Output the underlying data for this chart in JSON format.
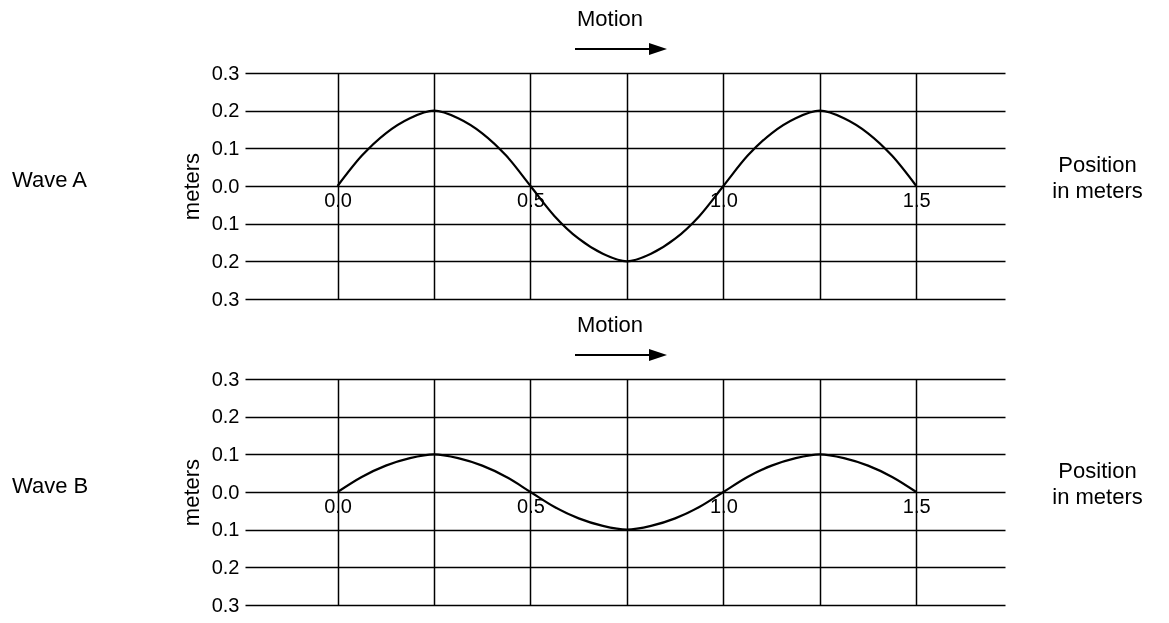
{
  "chart_data": [
    {
      "type": "line",
      "title": "Wave A",
      "annotations": [
        "Motion"
      ],
      "xlabel": "Position in meters",
      "ylabel": "meters",
      "x": [
        0,
        0.0625,
        0.125,
        0.1875,
        0.25,
        0.3125,
        0.375,
        0.4375,
        0.5,
        0.5625,
        0.625,
        0.6875,
        0.75,
        0.8125,
        0.875,
        0.9375,
        1,
        1.0625,
        1.125,
        1.1875,
        1.25,
        1.3125,
        1.375,
        1.4375,
        1.5
      ],
      "series": [
        {
          "color": "#000000",
          "values": [
            0,
            0.08,
            0.14,
            0.18,
            0.2,
            0.18,
            0.14,
            0.08,
            0,
            -0.08,
            -0.14,
            -0.18,
            -0.2,
            -0.18,
            -0.14,
            -0.08,
            0,
            0.08,
            0.14,
            0.18,
            0.2,
            0.18,
            0.14,
            0.08,
            0
          ]
        }
      ],
      "xlim": [
        -0.24,
        1.73
      ],
      "ylim": [
        -0.3,
        0.3
      ],
      "xticks": [
        {
          "value": 0,
          "label": "0.0"
        },
        {
          "value": 0.25,
          "label": null
        },
        {
          "value": 0.5,
          "label": "0.5"
        },
        {
          "value": 0.75,
          "label": null
        },
        {
          "value": 1,
          "label": "1.0"
        },
        {
          "value": 1.25,
          "label": null
        },
        {
          "value": 1.5,
          "label": "1.5"
        }
      ],
      "yticks": [
        {
          "value": -0.3,
          "label": "0.3"
        },
        {
          "value": -0.2,
          "label": "0.2"
        },
        {
          "value": -0.1,
          "label": "0.1"
        },
        {
          "value": 0,
          "label": "0.0"
        },
        {
          "value": 0.1,
          "label": "0.1"
        },
        {
          "value": 0.2,
          "label": "0.2"
        },
        {
          "value": 0.3,
          "label": "0.3"
        }
      ],
      "grid": true
    },
    {
      "type": "line",
      "title": "Wave B",
      "annotations": [
        "Motion"
      ],
      "xlabel": "Position in meters",
      "ylabel": "meters",
      "x": [
        0,
        0.0625,
        0.125,
        0.1875,
        0.25,
        0.3125,
        0.375,
        0.4375,
        0.5,
        0.5625,
        0.625,
        0.6875,
        0.75,
        0.8125,
        0.875,
        0.9375,
        1,
        1.0625,
        1.125,
        1.1875,
        1.25,
        1.3125,
        1.375,
        1.4375,
        1.5
      ],
      "series": [
        {
          "color": "#000000",
          "values": [
            0,
            0.04,
            0.07,
            0.09,
            0.1,
            0.09,
            0.07,
            0.04,
            0,
            -0.04,
            -0.07,
            -0.09,
            -0.1,
            -0.09,
            -0.07,
            -0.04,
            0,
            0.04,
            0.07,
            0.09,
            0.1,
            0.09,
            0.07,
            0.04,
            0
          ]
        }
      ],
      "xlim": [
        -0.24,
        1.73
      ],
      "ylim": [
        -0.3,
        0.3
      ],
      "xticks": [
        {
          "value": 0,
          "label": "0.0"
        },
        {
          "value": 0.25,
          "label": null
        },
        {
          "value": 0.5,
          "label": "0.5"
        },
        {
          "value": 0.75,
          "label": null
        },
        {
          "value": 1,
          "label": "1.0"
        },
        {
          "value": 1.25,
          "label": null
        },
        {
          "value": 1.5,
          "label": "1.5"
        }
      ],
      "yticks": [
        {
          "value": -0.3,
          "label": "0.3"
        },
        {
          "value": -0.2,
          "label": "0.2"
        },
        {
          "value": -0.1,
          "label": "0.1"
        },
        {
          "value": 0,
          "label": "0.0"
        },
        {
          "value": 0.1,
          "label": "0.1"
        },
        {
          "value": 0.2,
          "label": "0.2"
        },
        {
          "value": 0.3,
          "label": "0.3"
        }
      ],
      "grid": true
    }
  ]
}
